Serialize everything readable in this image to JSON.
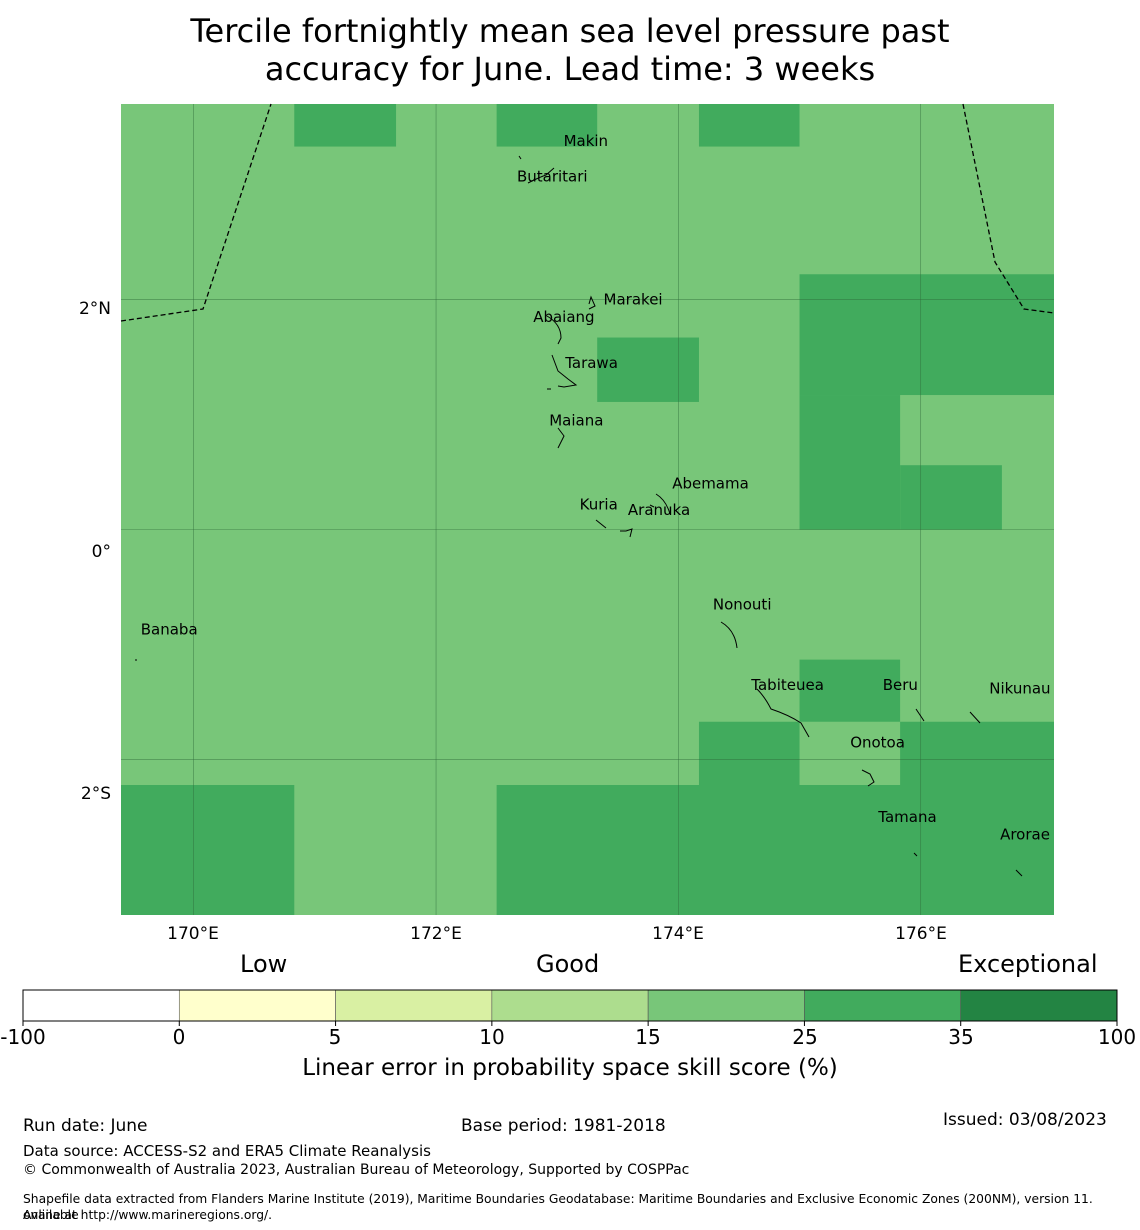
{
  "title": {
    "line1": "Tercile fortnightly mean sea level pressure past",
    "line2": "accuracy for June. Lead time: 3 weeks"
  },
  "map": {
    "lon_range": [
      169.4,
      177.1
    ],
    "lat_range": [
      -3.35,
      3.7
    ],
    "gridlines": true,
    "lat_labels": [
      "2°N",
      "0°",
      "2°S"
    ],
    "lon_labels": [
      "170°E",
      "172°E",
      "174°E",
      "176°E"
    ],
    "base_category": "15-25",
    "higher_cells_25_35": [
      {
        "lon": [
          170.83,
          171.67
        ],
        "lat": [
          3.33,
          3.7
        ]
      },
      {
        "lon": [
          172.5,
          173.33
        ],
        "lat": [
          3.33,
          3.7
        ]
      },
      {
        "lon": [
          174.17,
          175.0
        ],
        "lat": [
          3.33,
          3.7
        ]
      },
      {
        "lon": [
          175.0,
          177.1
        ],
        "lat": [
          1.17,
          2.22
        ]
      },
      {
        "lon": [
          173.33,
          174.17
        ],
        "lat": [
          1.11,
          1.67
        ]
      },
      {
        "lon": [
          175.0,
          175.83
        ],
        "lat": [
          0.0,
          1.17
        ]
      },
      {
        "lon": [
          175.83,
          176.67
        ],
        "lat": [
          0.0,
          0.56
        ]
      },
      {
        "lon": [
          175.0,
          175.83
        ],
        "lat": [
          -1.67,
          -1.13
        ]
      },
      {
        "lon": [
          174.17,
          175.0
        ],
        "lat": [
          -2.22,
          -1.67
        ]
      },
      {
        "lon": [
          175.83,
          177.1
        ],
        "lat": [
          -2.22,
          -1.67
        ]
      },
      {
        "lon": [
          169.4,
          170.83
        ],
        "lat": [
          -3.35,
          -2.22
        ]
      },
      {
        "lon": [
          172.5,
          177.1
        ],
        "lat": [
          -3.35,
          -2.22
        ]
      }
    ],
    "islands": [
      {
        "name": "Makin",
        "lon": 172.97,
        "lat": 3.38
      },
      {
        "name": "Butaritari",
        "lon": 172.8,
        "lat": 3.07
      },
      {
        "name": "Marakei",
        "lon": 173.3,
        "lat": 2.0
      },
      {
        "name": "Abaiang",
        "lon": 173.0,
        "lat": 1.85
      },
      {
        "name": "Tarawa",
        "lon": 173.0,
        "lat": 1.45
      },
      {
        "name": "Maiana",
        "lon": 173.0,
        "lat": 0.95
      },
      {
        "name": "Abemama",
        "lon": 173.85,
        "lat": 0.4
      },
      {
        "name": "Kuria",
        "lon": 173.4,
        "lat": 0.22
      },
      {
        "name": "Aranuka",
        "lon": 173.6,
        "lat": 0.17
      },
      {
        "name": "Nonouti",
        "lon": 174.4,
        "lat": -0.65
      },
      {
        "name": "Banaba",
        "lon": 169.53,
        "lat": -0.87
      },
      {
        "name": "Tabiteuea",
        "lon": 174.8,
        "lat": -1.35
      },
      {
        "name": "Beru",
        "lon": 176.0,
        "lat": -1.35
      },
      {
        "name": "Nikunau",
        "lon": 176.45,
        "lat": -1.38
      },
      {
        "name": "Onotoa",
        "lon": 175.55,
        "lat": -1.85
      },
      {
        "name": "Tamana",
        "lon": 175.98,
        "lat": -2.5
      },
      {
        "name": "Arorae",
        "lon": 176.82,
        "lat": -2.65
      }
    ]
  },
  "colorbar": {
    "category_labels": [
      "Low",
      "Good",
      "Exceptional"
    ],
    "ticks": [
      "-100",
      "0",
      "5",
      "10",
      "15",
      "25",
      "35",
      "100"
    ],
    "colors": [
      "#ffffff",
      "#ffffcc",
      "#d9f0a3",
      "#addd8e",
      "#78c679",
      "#41ab5d",
      "#238443"
    ],
    "title": "Linear error in probability space skill score (%)"
  },
  "footer": {
    "run_date": "Run date: June",
    "base_period": "Base period: 1981-2018",
    "issued": "Issued: 03/08/2023",
    "data_source": "Data source: ACCESS-S2 and ERA5 Climate Reanalysis",
    "copyright": "© Commonwealth of Australia 2023, Australian Bureau of Meteorology, Supported by COSPPac",
    "shapefile_line1": "Shapefile data extracted from Flanders Marine Institute (2019), Maritime Boundaries Geodatabase: Maritime Boundaries and Exclusive Economic Zones (200NM), version 11. Available",
    "shapefile_line2": "online at http://www.marineregions.org/."
  }
}
